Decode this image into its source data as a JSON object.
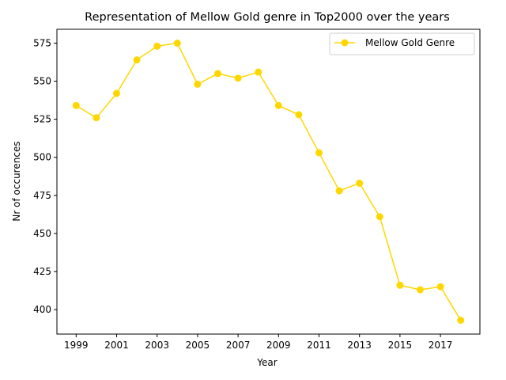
{
  "chart_data": {
    "type": "line",
    "title": "Representation of Mellow Gold genre in Top2000 over the years",
    "xlabel": "Year",
    "ylabel": "Nr of occurences",
    "x": [
      1999,
      2000,
      2001,
      2002,
      2003,
      2004,
      2005,
      2006,
      2007,
      2008,
      2009,
      2010,
      2011,
      2012,
      2013,
      2014,
      2015,
      2016,
      2017,
      2018
    ],
    "series": [
      {
        "name": "Mellow Gold Genre",
        "color": "#FFD700",
        "values": [
          534,
          526,
          542,
          564,
          573,
          575,
          548,
          555,
          552,
          556,
          534,
          528,
          503,
          478,
          483,
          461,
          416,
          413,
          415,
          393
        ]
      }
    ],
    "xticks": [
      1999,
      2001,
      2003,
      2005,
      2007,
      2009,
      2011,
      2013,
      2015,
      2017
    ],
    "yticks": [
      400,
      425,
      450,
      475,
      500,
      525,
      550,
      575
    ],
    "xlim": [
      1998.05,
      2018.95
    ],
    "ylim": [
      383.9,
      584.1
    ],
    "legend": "top-right",
    "grid": false
  }
}
